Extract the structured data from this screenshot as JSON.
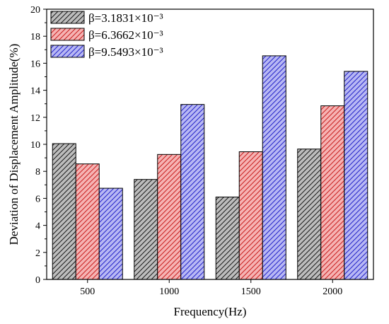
{
  "chart_data": {
    "type": "bar",
    "title": "",
    "xlabel": "Frequency(Hz)",
    "ylabel": "Deviation of Displacement Amplitude(%)",
    "categories": [
      "500",
      "1000",
      "1500",
      "2000"
    ],
    "series": [
      {
        "name": "β=3.1831×10⁻³",
        "values": [
          10.05,
          7.4,
          6.1,
          9.65
        ],
        "fill": "#bdbdbd",
        "stroke": "#1a1a1a"
      },
      {
        "name": "β=6.3662×10⁻³",
        "values": [
          8.55,
          9.25,
          9.45,
          12.85
        ],
        "fill": "#f6b3b3",
        "stroke": "#c81e1e"
      },
      {
        "name": "β=9.5493×10⁻³",
        "values": [
          6.75,
          12.95,
          16.55,
          15.4
        ],
        "fill": "#b8b8f4",
        "stroke": "#2323c8"
      }
    ],
    "ylim": [
      0,
      20
    ],
    "yticks": [
      0,
      2,
      4,
      6,
      8,
      10,
      12,
      14,
      16,
      18,
      20
    ],
    "grid": false,
    "legend_position": "top-left"
  }
}
